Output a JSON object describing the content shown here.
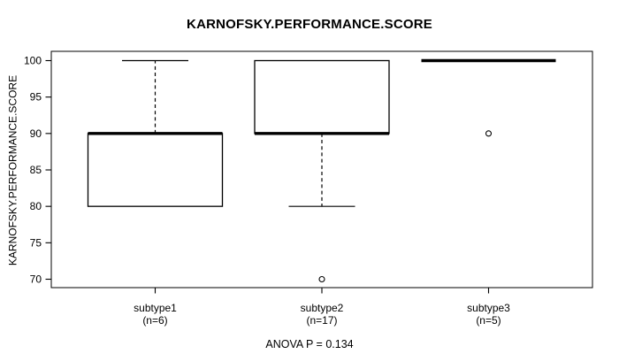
{
  "chart_data": {
    "type": "boxplot",
    "title": "KARNOFSKY.PERFORMANCE.SCORE",
    "ylabel": "KARNOFSKY.PERFORMANCE.SCORE",
    "annotation": "ANOVA P = 0.134",
    "anova_p": 0.134,
    "ylim": [
      68.8,
      101.3
    ],
    "yticks": [
      70,
      75,
      80,
      85,
      90,
      95,
      100
    ],
    "grid": false,
    "groups": [
      {
        "label": "subtype1",
        "sublabel": "(n=6)",
        "n": 6,
        "q1": 80,
        "median": 90,
        "q3": 90,
        "whisker_low": 80,
        "whisker_high": 100,
        "outliers": []
      },
      {
        "label": "subtype2",
        "sublabel": "(n=17)",
        "n": 17,
        "q1": 90,
        "median": 90,
        "q3": 100,
        "whisker_low": 80,
        "whisker_high": 100,
        "outliers": [
          70
        ]
      },
      {
        "label": "subtype3",
        "sublabel": "(n=5)",
        "n": 5,
        "q1": 100,
        "median": 100,
        "q3": 100,
        "whisker_low": 100,
        "whisker_high": 100,
        "outliers": [
          90
        ]
      }
    ],
    "line_color": "#000000",
    "box_fill": "#ffffff",
    "background": "#ffffff"
  }
}
